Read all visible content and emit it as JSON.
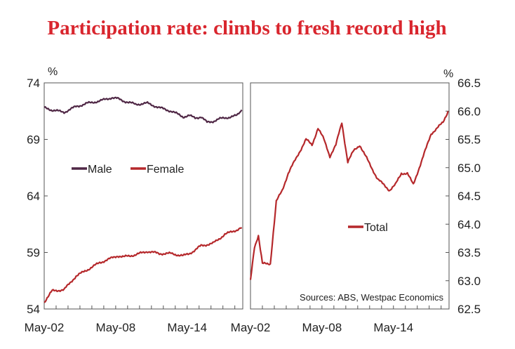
{
  "title": "Participation rate: climbs to fresh record high",
  "source": "Sources: ABS, Westpac Economics",
  "colors": {
    "title": "#d9262e",
    "male": "#4f2745",
    "female": "#b5282b",
    "total": "#b5282b"
  },
  "chart_data": [
    {
      "type": "line",
      "panel": "left",
      "ylabel": "%",
      "ylim": [
        54,
        74
      ],
      "yticks": [
        "74",
        "69",
        "64",
        "59",
        "54"
      ],
      "xlim": [
        "2002-05",
        "2019-01"
      ],
      "xticks": [
        "May-02",
        "May-08",
        "May-14"
      ],
      "legend_position": "center-left",
      "series": [
        {
          "name": "Male",
          "x": [
            "2002-05",
            "2003-01",
            "2004-01",
            "2005-01",
            "2006-01",
            "2007-01",
            "2008-01",
            "2008-07",
            "2009-01",
            "2010-01",
            "2011-01",
            "2012-01",
            "2013-01",
            "2014-01",
            "2014-07",
            "2015-01",
            "2015-07",
            "2016-01",
            "2016-07",
            "2017-01",
            "2017-07",
            "2018-01",
            "2018-07",
            "2018-12"
          ],
          "values": [
            71.8,
            71.6,
            71.4,
            71.9,
            72.2,
            72.4,
            72.7,
            72.6,
            72.4,
            72.1,
            72.2,
            71.8,
            71.5,
            71.0,
            71.1,
            70.9,
            71.0,
            70.5,
            70.6,
            70.8,
            70.9,
            71.0,
            71.1,
            71.6
          ]
        },
        {
          "name": "Female",
          "x": [
            "2002-05",
            "2003-01",
            "2004-01",
            "2005-01",
            "2006-01",
            "2007-01",
            "2008-01",
            "2008-07",
            "2009-01",
            "2010-01",
            "2011-01",
            "2012-01",
            "2013-01",
            "2014-01",
            "2014-07",
            "2015-01",
            "2015-07",
            "2016-01",
            "2016-07",
            "2017-01",
            "2017-07",
            "2018-01",
            "2018-07",
            "2018-12"
          ],
          "values": [
            54.6,
            55.6,
            55.7,
            56.9,
            57.5,
            58.1,
            58.5,
            58.7,
            58.6,
            58.8,
            59.1,
            58.9,
            58.9,
            58.7,
            58.9,
            59.2,
            59.6,
            59.7,
            59.8,
            60.2,
            60.6,
            60.8,
            61.0,
            61.2
          ]
        }
      ]
    },
    {
      "type": "line",
      "panel": "right",
      "ylabel": "%",
      "ylim": [
        62.5,
        66.5
      ],
      "yticks": [
        "66.5",
        "66.0",
        "65.5",
        "65.0",
        "64.5",
        "64.0",
        "63.5",
        "63.0",
        "62.5"
      ],
      "xlim": [
        "2002-05",
        "2019-01"
      ],
      "xticks": [
        "May-02",
        "May-08",
        "May-14"
      ],
      "legend_position": "center",
      "series": [
        {
          "name": "Total",
          "x": [
            "2002-05",
            "2002-09",
            "2003-01",
            "2003-05",
            "2003-09",
            "2004-01",
            "2004-07",
            "2005-01",
            "2005-07",
            "2006-01",
            "2006-07",
            "2007-01",
            "2007-07",
            "2008-01",
            "2008-07",
            "2009-01",
            "2009-07",
            "2010-01",
            "2010-07",
            "2011-01",
            "2011-07",
            "2012-01",
            "2012-07",
            "2013-01",
            "2013-07",
            "2014-01",
            "2014-07",
            "2015-01",
            "2015-07",
            "2016-01",
            "2016-07",
            "2017-01",
            "2017-07",
            "2018-01",
            "2018-07",
            "2018-12"
          ],
          "values": [
            63.0,
            63.6,
            63.8,
            63.3,
            63.3,
            63.3,
            64.4,
            64.6,
            64.9,
            65.1,
            65.3,
            65.5,
            65.4,
            65.7,
            65.5,
            65.2,
            65.4,
            65.8,
            65.1,
            65.3,
            65.4,
            65.2,
            65.0,
            64.8,
            64.7,
            64.6,
            64.7,
            64.9,
            64.9,
            64.7,
            65.0,
            65.3,
            65.6,
            65.7,
            65.8,
            66.0
          ]
        }
      ]
    }
  ]
}
